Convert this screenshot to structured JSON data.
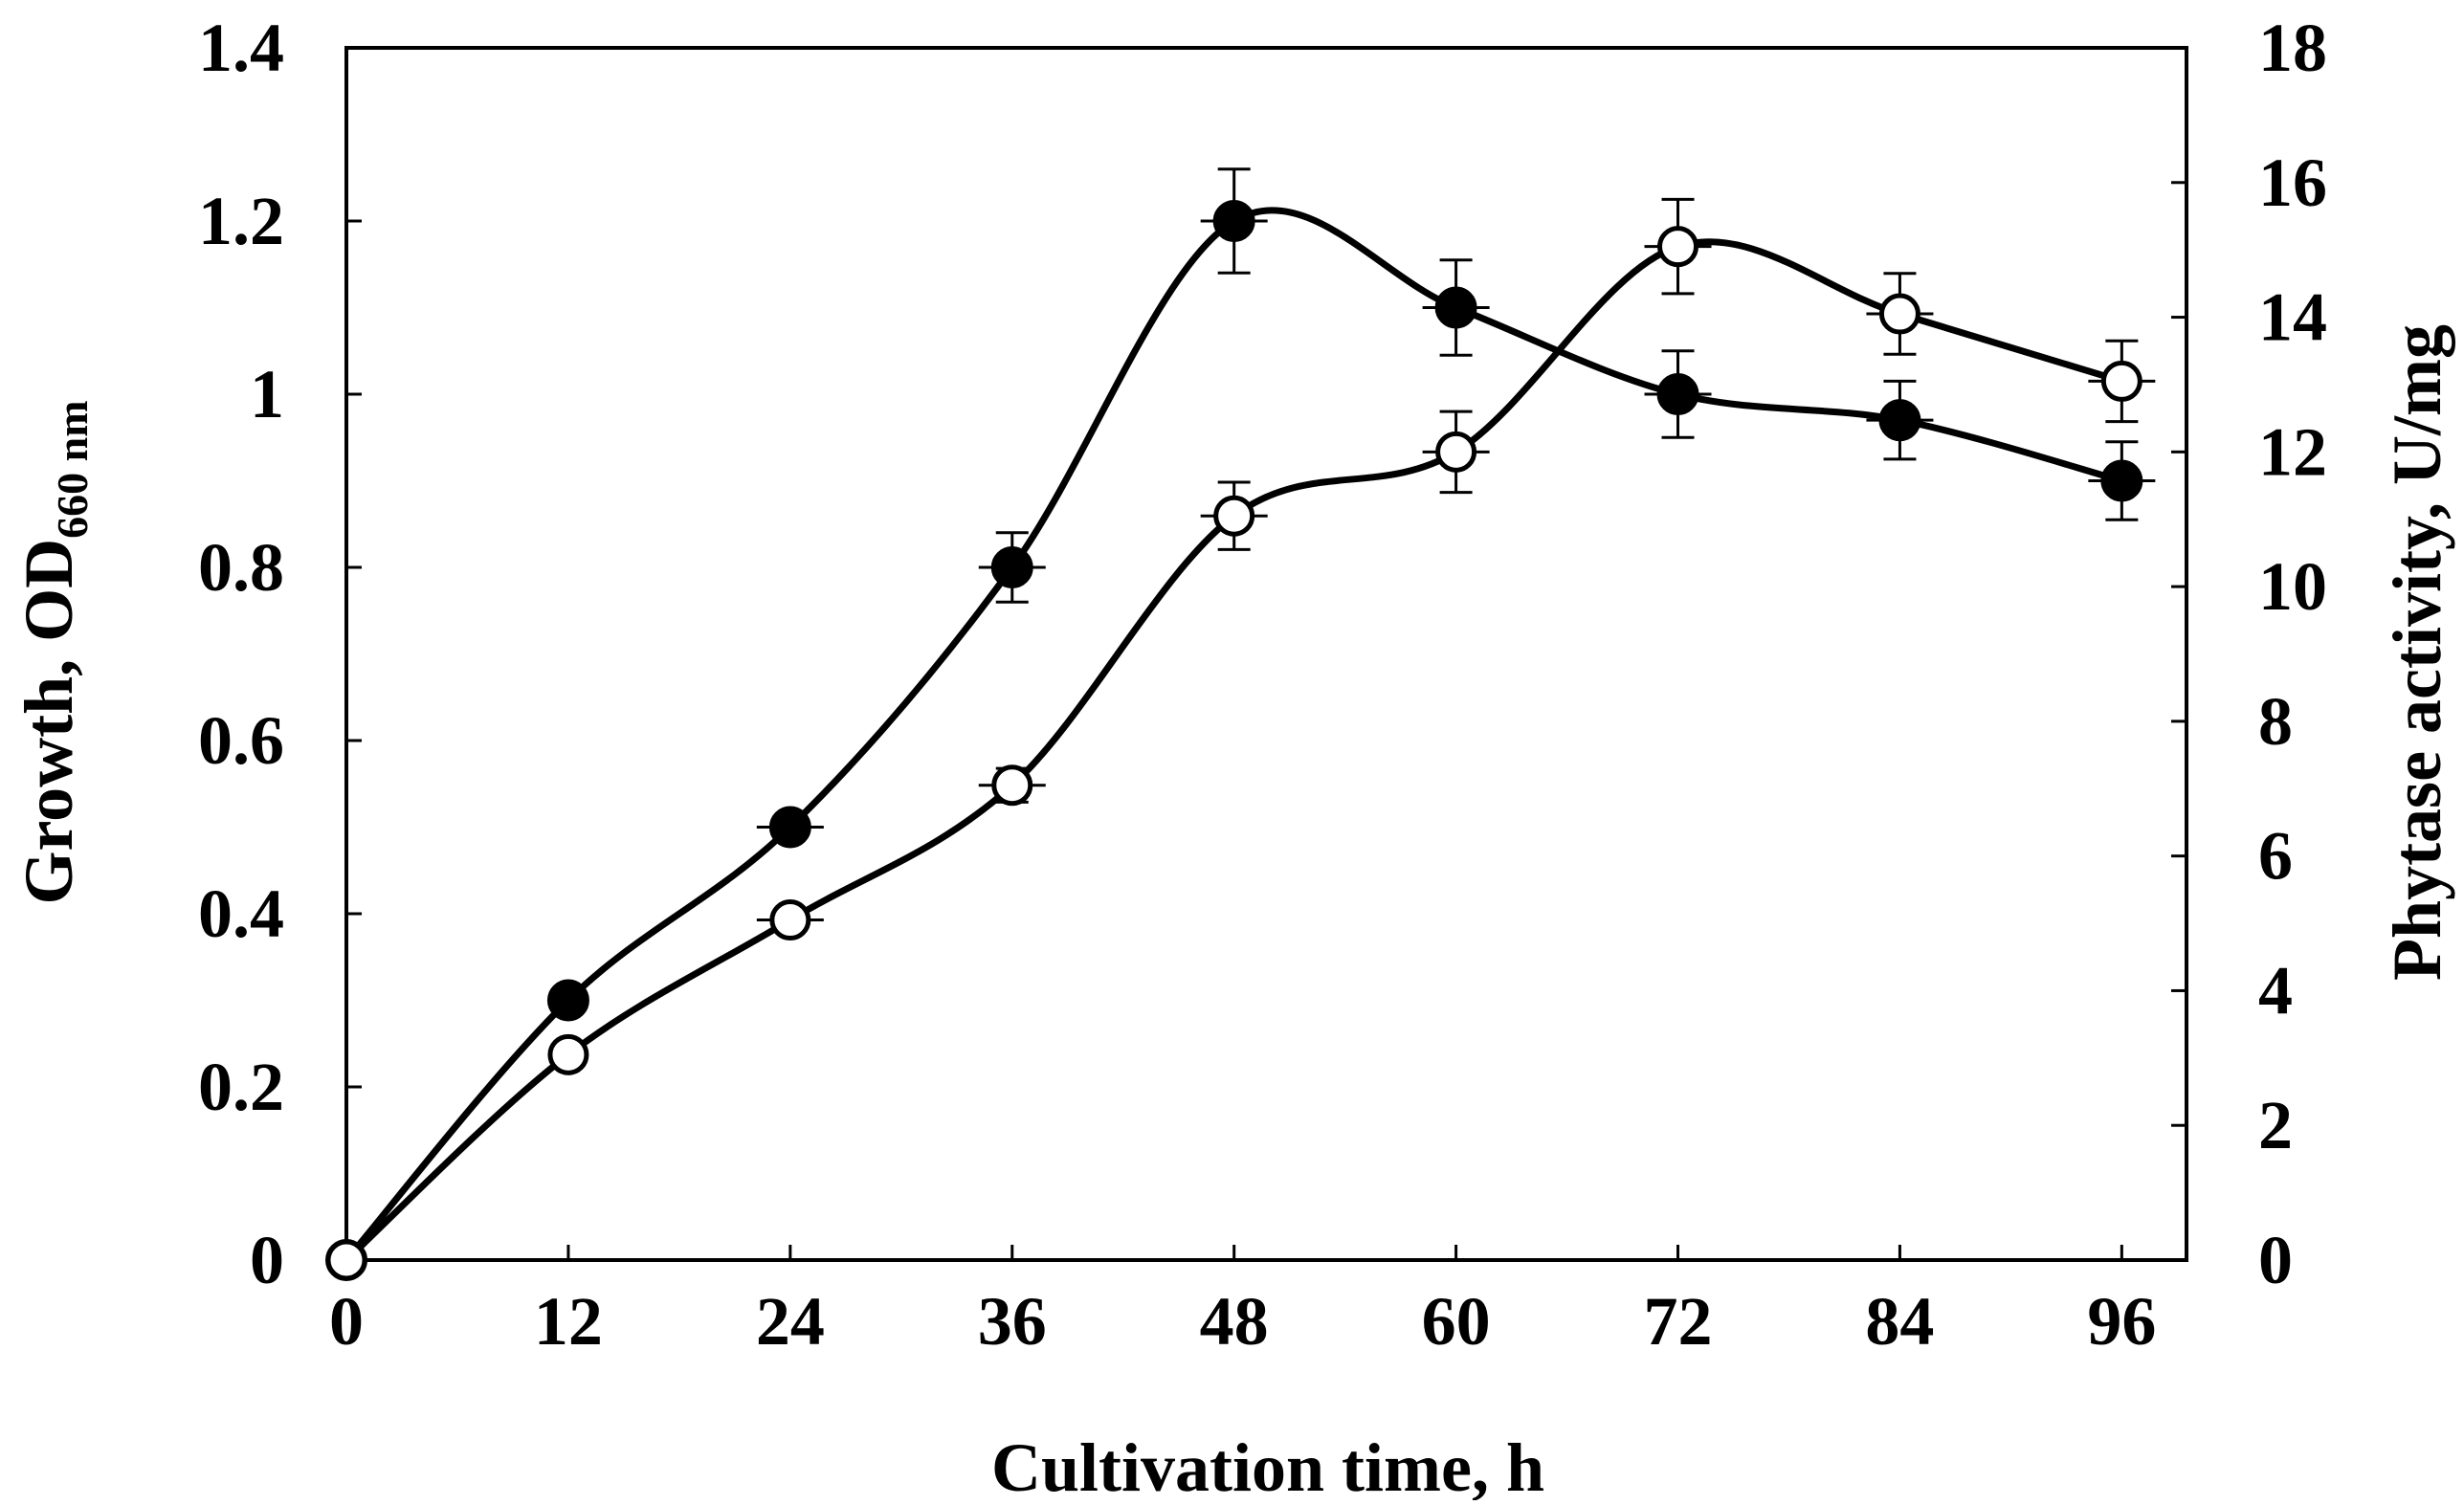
{
  "chart_data": {
    "type": "line",
    "title": "",
    "xlabel": "Cultivation time, h",
    "ylabel": {
      "main": "Growth, OD",
      "subscript": "660 nm"
    },
    "y2label": "Phytase activity, U/mg",
    "x": [
      0,
      12,
      24,
      36,
      48,
      60,
      72,
      84,
      96
    ],
    "xlim": [
      0,
      99.5
    ],
    "ylim": [
      0,
      1.4
    ],
    "y2lim": [
      0,
      18
    ],
    "x_ticks": [
      "0",
      "12",
      "24",
      "36",
      "48",
      "60",
      "72",
      "84",
      "96"
    ],
    "y_ticks": [
      "0",
      "0.2",
      "0.4",
      "0.6",
      "0.8",
      "1",
      "1.2",
      "1.4"
    ],
    "y2_ticks": [
      "0",
      "2",
      "4",
      "6",
      "8",
      "10",
      "12",
      "14",
      "16",
      "18"
    ],
    "grid": false,
    "legend": "none",
    "series": [
      {
        "name": "Growth (OD660 nm)",
        "axis": "left",
        "marker": "filled-circle",
        "values": [
          0,
          0.3,
          0.5,
          0.8,
          1.2,
          1.1,
          1.0,
          0.97,
          0.9
        ],
        "errors": [
          0,
          0,
          0.01,
          0.04,
          0.06,
          0.055,
          0.05,
          0.045,
          0.045
        ]
      },
      {
        "name": "Phytase activity (U/mg)",
        "axis": "right",
        "marker": "open-circle",
        "values": [
          0,
          3.05,
          5.05,
          7.05,
          11.05,
          12.0,
          15.05,
          14.05,
          13.05
        ],
        "errors": [
          0,
          0,
          0.1,
          0.25,
          0.5,
          0.6,
          0.7,
          0.6,
          0.6
        ]
      }
    ]
  }
}
